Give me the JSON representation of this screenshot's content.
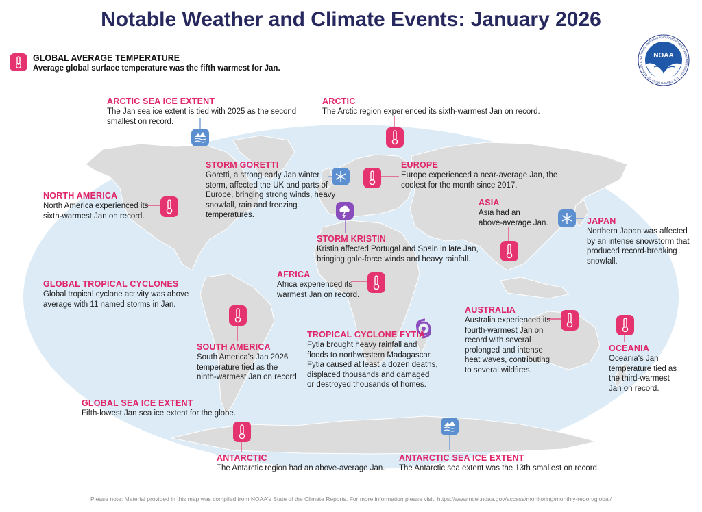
{
  "title": "Notable Weather and Climate Events: January 2026",
  "logo_text": "NOAA",
  "logo_ring_text": "NATIONAL OCEANIC AND ATMOSPHERIC ADMINISTRATION · U.S. DEPARTMENT OF COMMERCE",
  "global_average_temperature": {
    "heading": "GLOBAL AVERAGE TEMPERATURE",
    "text": "Average global surface temperature was the fifth warmest for Jan.",
    "icon": "thermometer-icon"
  },
  "notes": {
    "arctic_sea_ice": {
      "heading": "ARCTIC SEA ICE EXTENT",
      "lines": [
        "The Jan sea ice extent is tied with 2025 as the second",
        "smallest on record."
      ],
      "icon": "sea-ice-icon"
    },
    "arctic": {
      "heading": "ARCTIC",
      "lines": [
        "The Arctic region experienced its sixth-warmest Jan on record."
      ],
      "icon": "thermometer-icon"
    },
    "storm_goretti": {
      "heading": "STORM GORETTI",
      "lines": [
        "Goretti, a strong early Jan winter",
        "storm, affected the UK and parts of",
        "Europe, bringing strong winds, heavy",
        "snowfall, rain and freezing",
        "temperatures."
      ],
      "icon": "snowflake-icon"
    },
    "europe": {
      "heading": "EUROPE",
      "lines": [
        "Europe experienced a near-average Jan, the",
        "coolest for the month since 2017."
      ],
      "icon": "thermometer-icon"
    },
    "north_america": {
      "heading": "NORTH AMERICA",
      "lines": [
        "North America experienced its",
        "sixth-warmest Jan on record."
      ],
      "icon": "thermometer-icon"
    },
    "asia": {
      "heading": "ASIA",
      "lines": [
        "Asia had an",
        "above-average Jan."
      ],
      "icon": "thermometer-icon"
    },
    "japan": {
      "heading": "JAPAN",
      "lines": [
        "Northern Japan was affected",
        "by an intense snowstorm that",
        "produced record-breaking",
        "snowfall."
      ],
      "icon": "snowflake-icon"
    },
    "storm_kristin": {
      "heading": "STORM KRISTIN",
      "lines": [
        "Kristin affected Portugal and Spain in late Jan,",
        "bringing gale-force winds and heavy rainfall."
      ],
      "icon": "storm-cloud-icon"
    },
    "africa": {
      "heading": "AFRICA",
      "lines": [
        "Africa experienced its",
        "warmest Jan on record."
      ],
      "icon": "thermometer-icon"
    },
    "global_tropical_cyclones": {
      "heading": "GLOBAL TROPICAL CYCLONES",
      "lines": [
        "Global tropical cyclone activity was above",
        "average with 11 named storms in Jan."
      ]
    },
    "australia": {
      "heading": "AUSTRALIA",
      "lines": [
        "Australia experienced its",
        "fourth-warmest Jan on",
        "record with several",
        "prolonged and intense",
        "heat waves, contributing",
        "to several wildfires."
      ],
      "icon": "thermometer-icon"
    },
    "tropical_cyclone_fytia": {
      "heading": "TROPICAL CYCLONE FYTIA",
      "lines": [
        "Fytia brought heavy rainfall and",
        "floods to northwestern Madagascar.",
        "Fytia caused at least a dozen deaths,",
        "displaced thousands and damaged",
        "or destroyed thousands of homes."
      ],
      "icon": "cyclone-icon"
    },
    "south_america": {
      "heading": "SOUTH AMERICA",
      "lines": [
        "South America's Jan 2026",
        "temperature tied as the",
        "ninth-warmest Jan on record."
      ],
      "icon": "thermometer-icon"
    },
    "oceania": {
      "heading": "OCEANIA",
      "lines": [
        "Oceania's Jan",
        "temperature tied as",
        "the third-warmest",
        "Jan on record."
      ],
      "icon": "thermometer-icon"
    },
    "global_sea_ice": {
      "heading": "GLOBAL SEA ICE EXTENT",
      "lines": [
        "Fifth-lowest Jan sea ice extent for the globe."
      ]
    },
    "antarctic": {
      "heading": "ANTARCTIC",
      "lines": [
        "The Antarctic region had an above-average Jan."
      ],
      "icon": "thermometer-icon"
    },
    "antarctic_sea_ice": {
      "heading": "ANTARCTIC SEA ICE EXTENT",
      "lines": [
        "The Antarctic sea extent was the 13th smallest on record."
      ],
      "icon": "sea-ice-icon"
    }
  },
  "footer": "Please note: Material provided in this map was compiled from NOAA's State of the Climate Reports. For more information please visit: https://www.ncei.noaa.gov/access/monitoring/monthly-report/global/",
  "colors": {
    "title": "#26285e",
    "heading": "#e0246a",
    "ocean": "#dcebf5",
    "land": "#dcdcdc",
    "temp_marker": "#e4336f",
    "ice_marker": "#5b8fd0",
    "storm_marker": "#8a4bbd"
  }
}
